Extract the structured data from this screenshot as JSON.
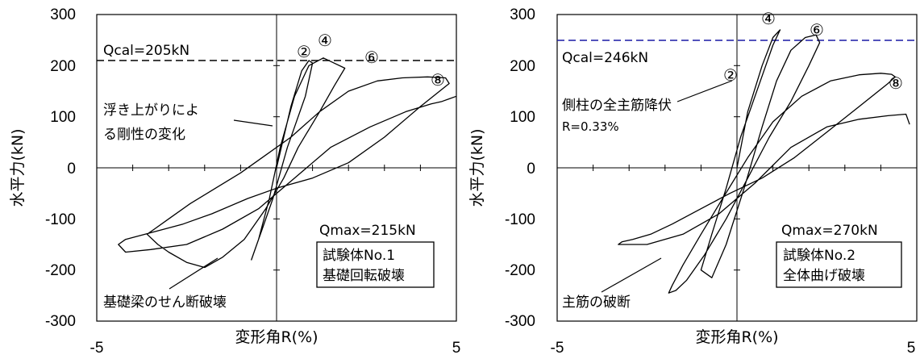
{
  "chart_data": [
    {
      "type": "line",
      "xlim": [
        -5,
        5
      ],
      "ylim": [
        -300,
        300
      ],
      "x_ticks": [
        "-5",
        "5"
      ],
      "y_ticks": [
        "300",
        "200",
        "100",
        "0",
        "-100",
        "-200",
        "-300"
      ],
      "xlabel": "変形角R(%)",
      "ylabel": "水平力(kN)",
      "grid": false,
      "reference_line": {
        "label": "Qcal=205kN",
        "y": 205,
        "color": "#000000",
        "style": "dashed"
      },
      "cycle_markers": [
        "②",
        "④",
        "⑥",
        "⑧"
      ],
      "annotations": {
        "uplift": [
          "浮き上がりによ",
          "る剛性の変化"
        ],
        "beam_shear": "基礎梁のせん断破壊",
        "qmax": "Qmax=215kN"
      },
      "box_lines": [
        "試験体No.1",
        "基礎回転破壊"
      ],
      "series": [
        {
          "x": [
            0,
            0.4,
            0.7,
            0.9,
            1.0,
            0.8,
            0.3,
            -0.1,
            -0.4,
            -0.6,
            -0.7,
            -0.5,
            -0.2,
            0.1,
            0.5,
            0.9,
            1.3,
            1.6,
            1.9,
            1.6,
            1.2,
            0.6,
            0.2,
            -0.3,
            -0.9,
            -1.5,
            -2.0,
            -2.5,
            -3.0,
            -3.3,
            -3.6,
            -3.4,
            -3.0,
            -2.4,
            -1.7,
            -1.0,
            -0.4,
            0.4,
            1.2,
            2.0,
            2.8,
            3.5,
            4.2,
            4.7,
            4.8,
            4.0,
            3.0,
            2.0,
            1.0,
            0.0,
            -0.8,
            -1.8,
            -2.6,
            -3.4,
            -4.2,
            -4.4,
            -4.2,
            -3.5,
            -2.5,
            -1.5,
            -0.5,
            0.5,
            1.5,
            2.6,
            3.6,
            4.3,
            4.6,
            4.8,
            5.0
          ],
          "y": [
            0,
            120,
            190,
            210,
            205,
            140,
            40,
            -60,
            -120,
            -160,
            -180,
            -140,
            -60,
            40,
            140,
            200,
            215,
            205,
            195,
            160,
            110,
            40,
            -20,
            -80,
            -140,
            -175,
            -195,
            -185,
            -165,
            -150,
            -130,
            -120,
            -100,
            -70,
            -40,
            -10,
            20,
            60,
            110,
            150,
            170,
            176,
            178,
            176,
            165,
            120,
            60,
            10,
            -20,
            -40,
            -60,
            -90,
            -110,
            -125,
            -140,
            -150,
            -165,
            -160,
            -150,
            -120,
            -80,
            -20,
            40,
            80,
            110,
            125,
            130,
            135,
            140
          ]
        }
      ]
    },
    {
      "type": "line",
      "xlim": [
        -5,
        5
      ],
      "ylim": [
        -300,
        300
      ],
      "x_ticks": [
        "-5",
        "5"
      ],
      "y_ticks": [
        "300",
        "200",
        "100",
        "0",
        "-100",
        "-200",
        "-300"
      ],
      "xlabel": "変形角R(%)",
      "ylabel": "水平力(kN)",
      "grid": false,
      "reference_line": {
        "label": "Qcal=246kN",
        "y": 246,
        "color": "#1a1aa6",
        "style": "dashed"
      },
      "cycle_markers": [
        "②",
        "④",
        "⑥",
        "⑧"
      ],
      "annotations": {
        "yield": [
          "側柱の全主筋降伏",
          "R=0.33%"
        ],
        "rebar_break": "主筋の破断",
        "qmax": "Qmax=270kN"
      },
      "box_lines": [
        "試験体No.2",
        "全体曲げ破壊"
      ],
      "series": [
        {
          "x": [
            0,
            0.3,
            0.7,
            1.0,
            1.2,
            1.0,
            0.6,
            0.1,
            -0.3,
            -0.7,
            -1.0,
            -0.7,
            -0.3,
            0.2,
            0.7,
            1.1,
            1.5,
            1.9,
            2.2,
            2.3,
            2.0,
            1.5,
            0.9,
            0.3,
            -0.3,
            -0.9,
            -1.4,
            -1.7,
            -1.9,
            -1.8,
            -1.5,
            -1.0,
            -0.4,
            0.3,
            1.0,
            1.8,
            2.6,
            3.4,
            4.0,
            4.3,
            4.4,
            4.2,
            3.4,
            2.5,
            1.6,
            0.7,
            -0.2,
            -1.0,
            -1.8,
            -2.4,
            -2.9,
            -3.2,
            -3.3,
            -2.5,
            -1.5,
            -0.5,
            0.5,
            1.5,
            2.5,
            3.4,
            4.2,
            4.7,
            4.8
          ],
          "y": [
            0,
            110,
            200,
            255,
            270,
            240,
            160,
            60,
            -40,
            -130,
            -200,
            -215,
            -150,
            -40,
            80,
            170,
            230,
            255,
            260,
            245,
            200,
            130,
            60,
            -20,
            -100,
            -170,
            -220,
            -240,
            -245,
            -230,
            -190,
            -130,
            -60,
            20,
            90,
            140,
            170,
            182,
            185,
            183,
            178,
            165,
            120,
            70,
            20,
            -20,
            -50,
            -80,
            -110,
            -130,
            -140,
            -145,
            -150,
            -150,
            -130,
            -90,
            -30,
            40,
            80,
            95,
            102,
            105,
            85
          ]
        }
      ]
    }
  ]
}
